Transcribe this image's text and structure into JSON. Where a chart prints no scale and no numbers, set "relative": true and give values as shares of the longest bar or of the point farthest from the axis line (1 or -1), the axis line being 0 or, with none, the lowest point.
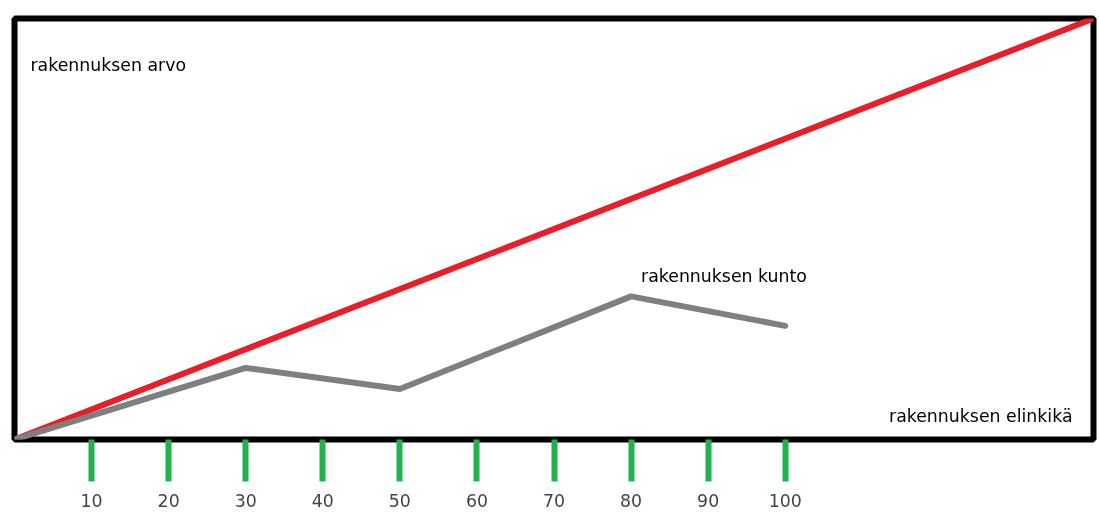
{
  "chart_data": {
    "type": "line",
    "relative": true,
    "xlabel": "rakennuksen elinkikä",
    "ylabel": "rakennuksen arvo",
    "xlim": [
      0,
      140
    ],
    "xticks": [
      10,
      20,
      30,
      40,
      50,
      60,
      70,
      80,
      90,
      100
    ],
    "legend": false,
    "grid": false,
    "marker": "none",
    "line_style": "solid",
    "series": [
      {
        "color": "#e81e28",
        "x": [
          0,
          140
        ],
        "values": [
          0,
          1
        ]
      },
      {
        "name": "rakennuksen kunto",
        "color": "#7f7f7f",
        "x": [
          0,
          30,
          50,
          80,
          100
        ],
        "values": [
          0,
          0.17,
          0.12,
          0.34,
          0.27
        ]
      }
    ]
  }
}
